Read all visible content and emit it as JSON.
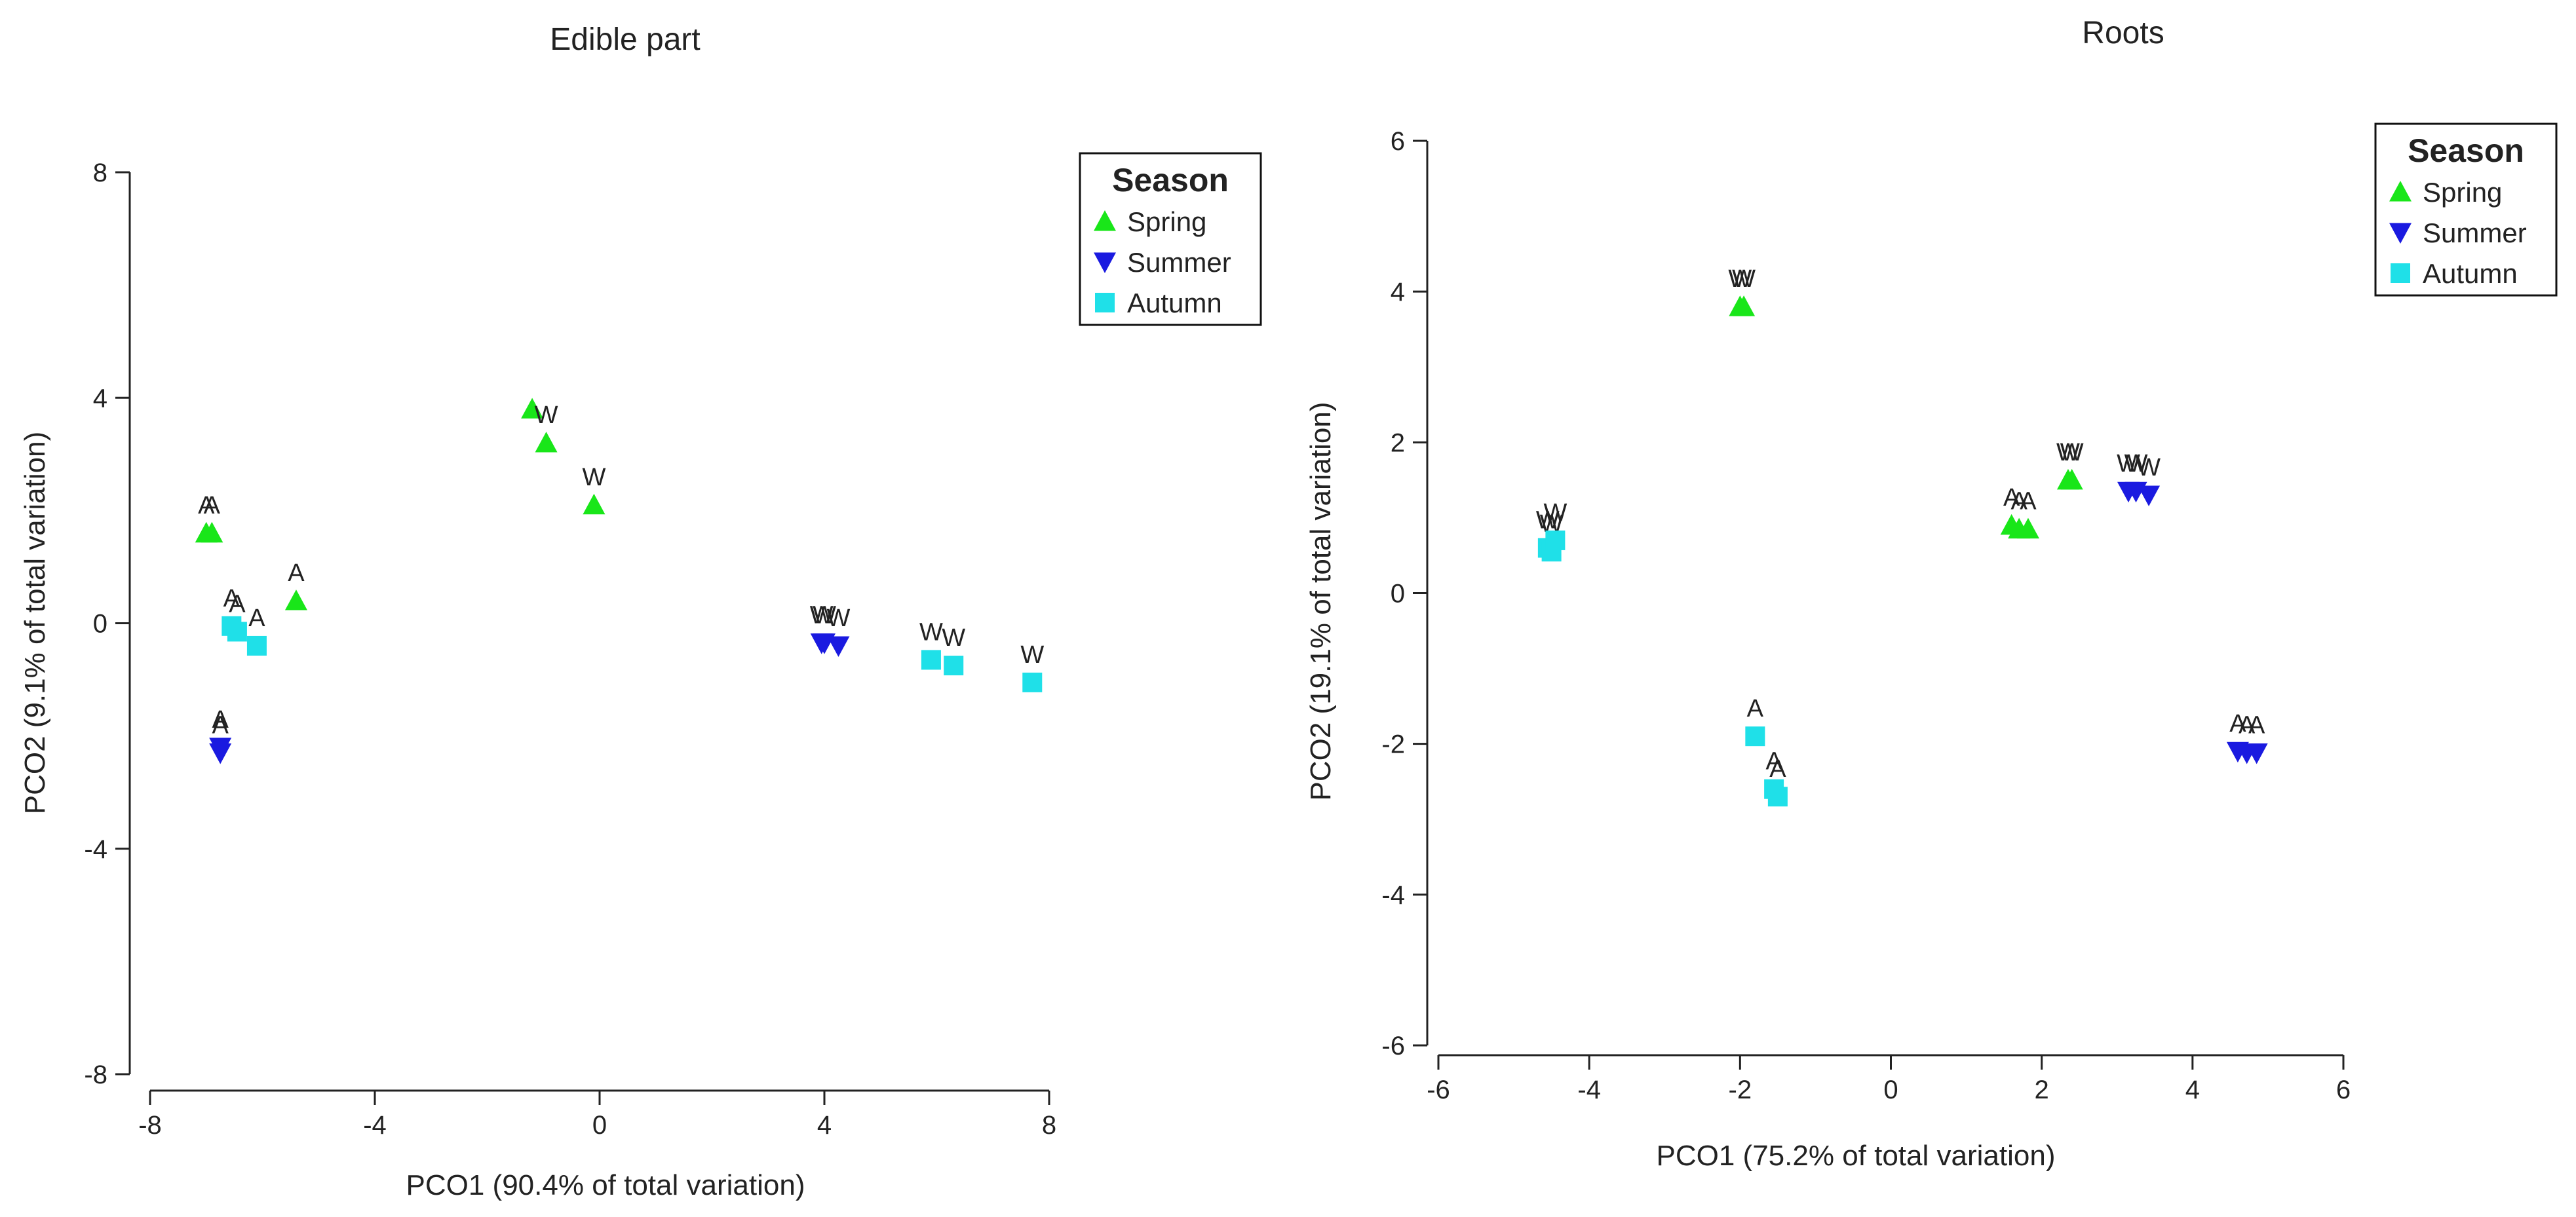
{
  "chart_data": [
    {
      "type": "scatter",
      "title": "Edible part",
      "xlabel": "PCO1 (90.4% of total variation)",
      "ylabel": "PCO2 (9.1% of total variation)",
      "xlim": [
        -8,
        8
      ],
      "ylim": [
        -8,
        8
      ],
      "xticks": [
        -8,
        -4,
        0,
        4,
        8
      ],
      "yticks": [
        8,
        4,
        0,
        -4,
        -8
      ],
      "legend": {
        "title": "Season",
        "position": "top-right",
        "entries": [
          {
            "name": "Spring",
            "marker": "triangle-up",
            "color": "#19e619"
          },
          {
            "name": "Summer",
            "marker": "triangle-down",
            "color": "#1a1ae0"
          },
          {
            "name": "Autumn",
            "marker": "square",
            "color": "#1fe0e8"
          }
        ]
      },
      "series": [
        {
          "name": "Spring",
          "points": [
            {
              "x": -7.0,
              "y": 1.6,
              "label": "A"
            },
            {
              "x": -6.9,
              "y": 1.6,
              "label": "A"
            },
            {
              "x": -5.4,
              "y": 0.4,
              "label": "A"
            },
            {
              "x": -1.2,
              "y": 3.8,
              "label": ""
            },
            {
              "x": -0.95,
              "y": 3.2,
              "label": "W"
            },
            {
              "x": -0.1,
              "y": 2.1,
              "label": "W"
            }
          ]
        },
        {
          "name": "Summer",
          "points": [
            {
              "x": -6.75,
              "y": -2.2,
              "label": "A"
            },
            {
              "x": -6.75,
              "y": -2.3,
              "label": "A"
            },
            {
              "x": 3.95,
              "y": -0.35,
              "label": "W"
            },
            {
              "x": 4.0,
              "y": -0.35,
              "label": "W"
            },
            {
              "x": 4.25,
              "y": -0.4,
              "label": "W"
            }
          ]
        },
        {
          "name": "Autumn",
          "points": [
            {
              "x": -6.55,
              "y": -0.05,
              "label": "A"
            },
            {
              "x": -6.45,
              "y": -0.15,
              "label": "A"
            },
            {
              "x": -6.1,
              "y": -0.4,
              "label": "A"
            },
            {
              "x": 5.9,
              "y": -0.65,
              "label": "W"
            },
            {
              "x": 6.3,
              "y": -0.75,
              "label": "W"
            },
            {
              "x": 7.7,
              "y": -1.05,
              "label": "W"
            }
          ]
        }
      ]
    },
    {
      "type": "scatter",
      "title": "Roots",
      "xlabel": "PCO1 (75.2% of total variation)",
      "ylabel": "PCO2 (19.1% of total variation)",
      "xlim": [
        -6,
        6
      ],
      "ylim": [
        -6,
        6
      ],
      "xticks": [
        -6,
        -4,
        -2,
        0,
        2,
        4,
        6
      ],
      "yticks": [
        6,
        4,
        2,
        0,
        -2,
        -4,
        -6
      ],
      "legend": {
        "title": "Season",
        "position": "top-right",
        "entries": [
          {
            "name": "Spring",
            "marker": "triangle-up",
            "color": "#19e619"
          },
          {
            "name": "Summer",
            "marker": "triangle-down",
            "color": "#1a1ae0"
          },
          {
            "name": "Autumn",
            "marker": "square",
            "color": "#1fe0e8"
          }
        ]
      },
      "series": [
        {
          "name": "Spring",
          "points": [
            {
              "x": -2.0,
              "y": 3.8,
              "label": "W"
            },
            {
              "x": -1.95,
              "y": 3.8,
              "label": "W"
            },
            {
              "x": 1.6,
              "y": 0.9,
              "label": "A"
            },
            {
              "x": 1.7,
              "y": 0.85,
              "label": "A"
            },
            {
              "x": 1.82,
              "y": 0.85,
              "label": "A"
            },
            {
              "x": 2.35,
              "y": 1.5,
              "label": "W"
            },
            {
              "x": 2.4,
              "y": 1.5,
              "label": "W"
            }
          ]
        },
        {
          "name": "Summer",
          "points": [
            {
              "x": 3.15,
              "y": 1.35,
              "label": "W"
            },
            {
              "x": 3.25,
              "y": 1.35,
              "label": "W"
            },
            {
              "x": 3.42,
              "y": 1.3,
              "label": "W"
            },
            {
              "x": 4.6,
              "y": -2.1,
              "label": "A"
            },
            {
              "x": 4.72,
              "y": -2.12,
              "label": "A"
            },
            {
              "x": 4.85,
              "y": -2.12,
              "label": "A"
            }
          ]
        },
        {
          "name": "Autumn",
          "points": [
            {
              "x": -4.55,
              "y": 0.6,
              "label": "W"
            },
            {
              "x": -4.5,
              "y": 0.55,
              "label": "W"
            },
            {
              "x": -4.45,
              "y": 0.7,
              "label": "W"
            },
            {
              "x": -1.8,
              "y": -1.9,
              "label": "A"
            },
            {
              "x": -1.55,
              "y": -2.6,
              "label": "A"
            },
            {
              "x": -1.5,
              "y": -2.7,
              "label": "A"
            }
          ]
        }
      ]
    }
  ]
}
